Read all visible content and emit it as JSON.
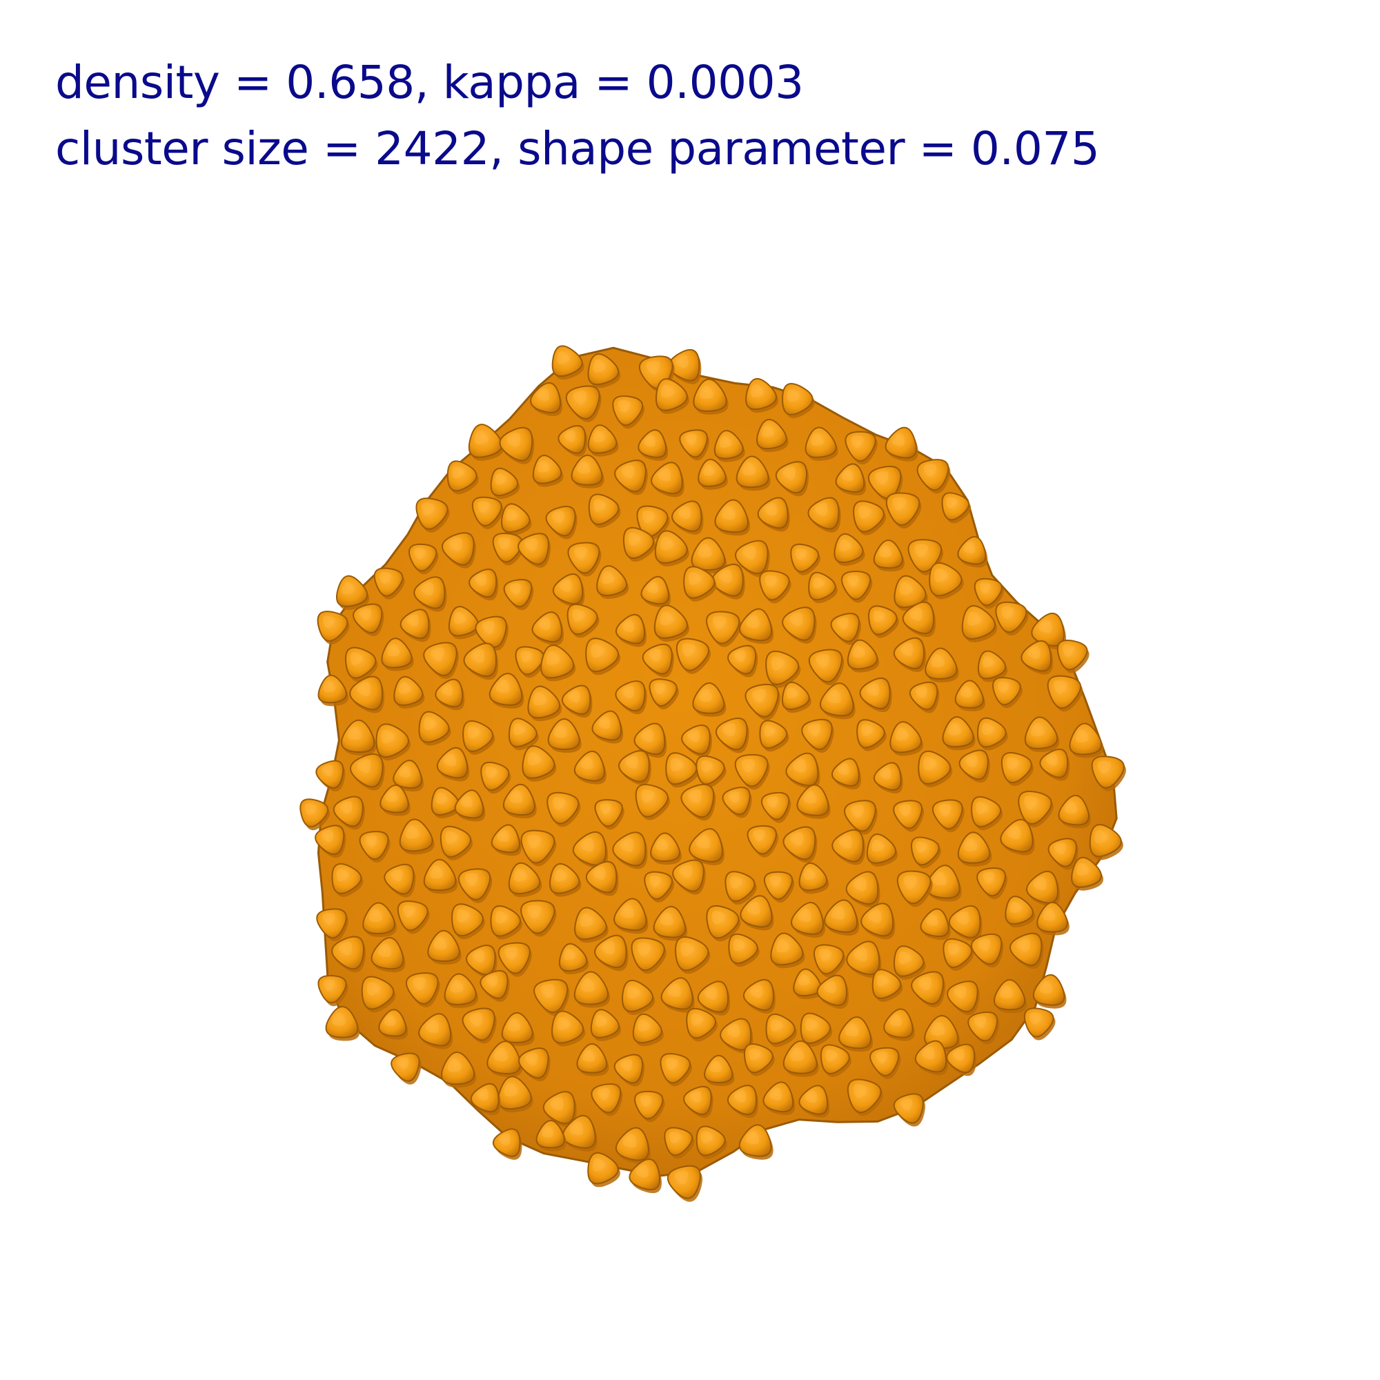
{
  "caption": {
    "line1": "density = 0.658, kappa = 0.0003",
    "line2": "cluster size = 2422, shape parameter = 0.075"
  },
  "render": {
    "subject": "cluster of rounded triangular particles",
    "particle_color": "#f19a10",
    "particle_shadow_color": "#b86a06",
    "particle_highlight_color": "#ffb43a",
    "outline_color": "#9a5a05",
    "caption_color": "#0a0a8c",
    "background_color": "#ffffff"
  }
}
